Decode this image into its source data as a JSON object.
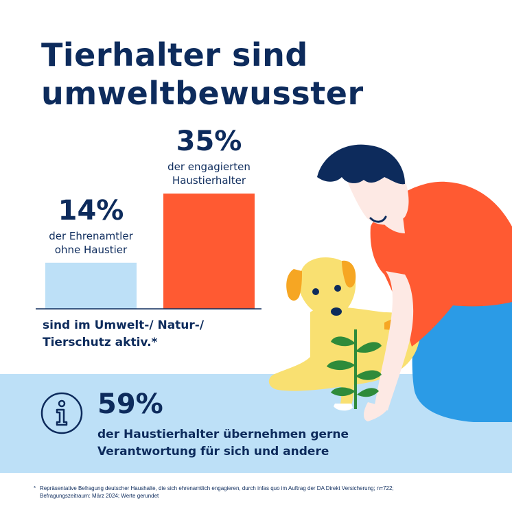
{
  "title_lines": [
    "Tierhalter sind",
    "umweltbewusster"
  ],
  "colors": {
    "navy": "#0d2b5c",
    "bar_light": "#bde0f7",
    "bar_orange": "#ff5a32",
    "band": "#bde0f7",
    "shirt": "#ff5a32",
    "dog": "#f9e071",
    "dog_ear": "#f6a623",
    "pants": "#2b9be6",
    "leaf": "#2f8b3a"
  },
  "chart_data": {
    "type": "bar",
    "categories": [
      "der Ehrenamtler ohne Haustier",
      "der engagierten Haustierhalter"
    ],
    "values": [
      14,
      35
    ],
    "value_labels": [
      "14%",
      "35%"
    ],
    "caption_lines": [
      [
        "der Ehrenamtler",
        "ohne Haustier"
      ],
      [
        "der engagierten",
        "Haustierhalter"
      ]
    ],
    "axis_caption": [
      "sind im Umwelt-/ Natur-/",
      "Tierschutz aktiv.*"
    ],
    "bar_colors": [
      "#bde0f7",
      "#ff5a32"
    ],
    "ylim": [
      0,
      35
    ]
  },
  "info": {
    "icon": "info-icon",
    "value": "59%",
    "text_lines": [
      "der Haustierhalter übernehmen gerne",
      "Verantwortung für sich und andere"
    ]
  },
  "footnote": {
    "star": "*",
    "lines": [
      "Repräsentative Befragung deutscher Haushalte, die sich ehrenamtlich engagieren, durch infas quo im Auftrag der DA Direkt Versicherung; n=722;",
      "Befragungszeitraum: März 2024; Werte gerundet"
    ]
  }
}
